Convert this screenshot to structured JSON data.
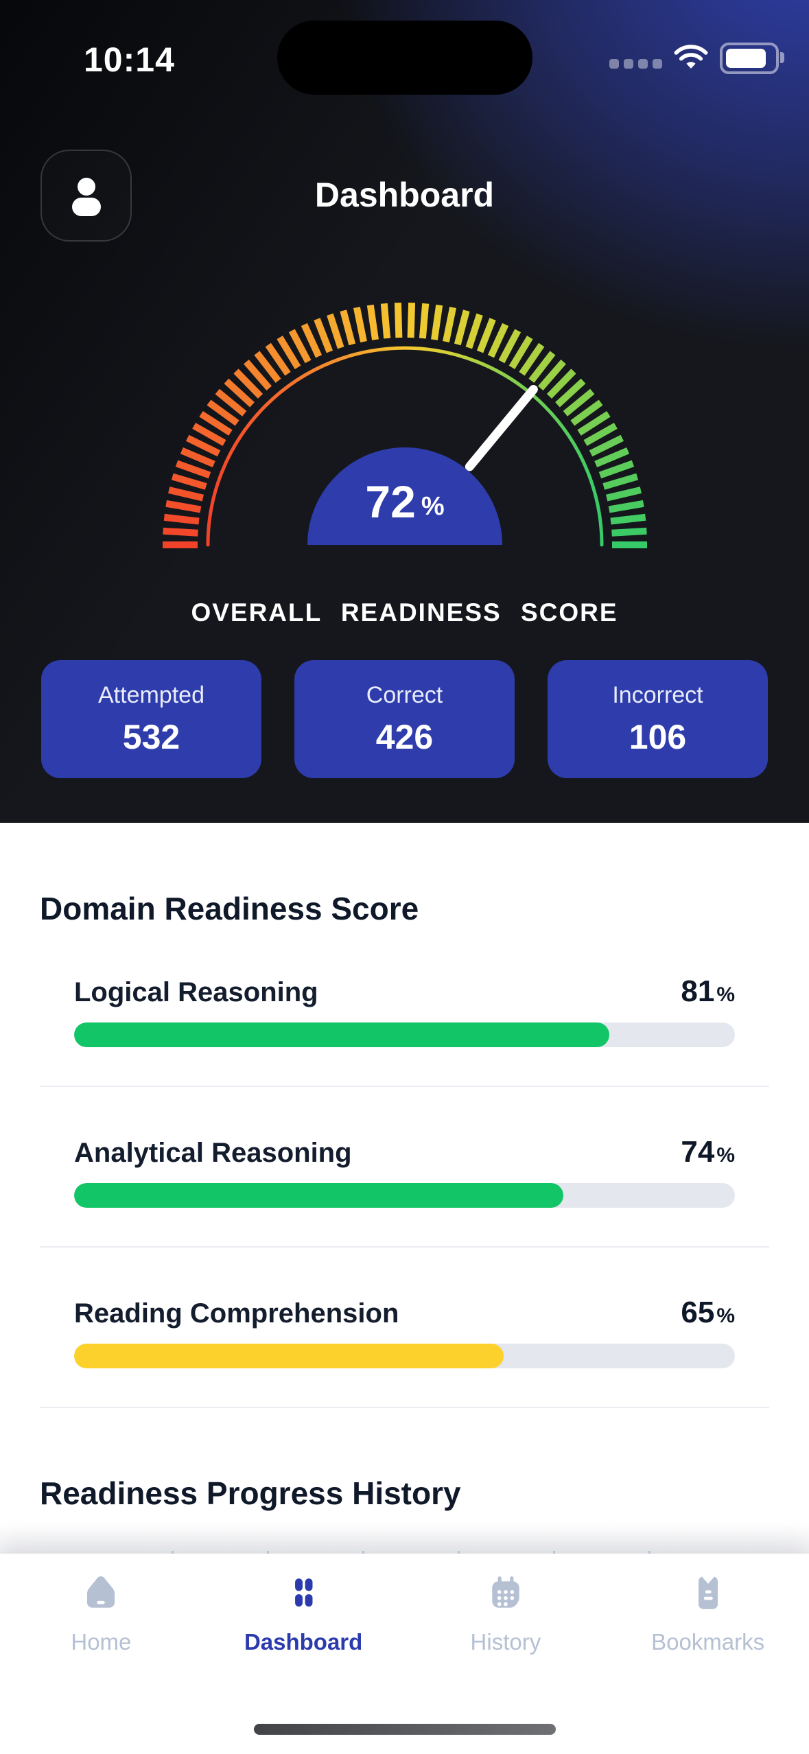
{
  "status_bar": {
    "time": "10:14",
    "signal_icon": "signal-dots-icon",
    "wifi_icon": "wifi-icon",
    "battery_icon": "battery-icon"
  },
  "header": {
    "title": "Dashboard",
    "avatar_icon": "person-icon"
  },
  "gauge": {
    "value": "72",
    "unit": "%",
    "caption": "OVERALL READINESS SCORE",
    "min": 0,
    "max": 100,
    "tick_count": 56,
    "color_stops": [
      {
        "t": 0.0,
        "color": "#f2432a"
      },
      {
        "t": 0.18,
        "color": "#f46a2d"
      },
      {
        "t": 0.35,
        "color": "#f59a2f"
      },
      {
        "t": 0.5,
        "color": "#f6c72f"
      },
      {
        "t": 0.62,
        "color": "#cfd239"
      },
      {
        "t": 0.75,
        "color": "#8ed04a"
      },
      {
        "t": 1.0,
        "color": "#36ca68"
      }
    ],
    "needle_color": "#ffffff",
    "center_color": "#2e3cac",
    "value_color": "#ffffff"
  },
  "stats": [
    {
      "label": "Attempted",
      "value": "532"
    },
    {
      "label": "Correct",
      "value": "426"
    },
    {
      "label": "Incorrect",
      "value": "106"
    }
  ],
  "domain_section": {
    "title": "Domain Readiness Score",
    "unit": "%",
    "rows": [
      {
        "label": "Logical Reasoning",
        "percent": 81,
        "color": "#12c566"
      },
      {
        "label": "Analytical Reasoning",
        "percent": 74,
        "color": "#12c566"
      },
      {
        "label": "Reading Comprehension",
        "percent": 65,
        "color": "#fcd12b"
      }
    ]
  },
  "history_section": {
    "title": "Readiness Progress History",
    "gridline_count": 6
  },
  "tab_bar": {
    "items": [
      {
        "label": "Home",
        "icon": "home-icon",
        "active": false
      },
      {
        "label": "Dashboard",
        "icon": "dashboard-grid-icon",
        "active": true
      },
      {
        "label": "History",
        "icon": "calendar-icon",
        "active": false
      },
      {
        "label": "Bookmarks",
        "icon": "bookmark-icon",
        "active": false
      }
    ]
  },
  "colors": {
    "accent_blue": "#2e3cac",
    "nav_active": "#2b3bad",
    "nav_inactive": "#b5c0d3",
    "bar_track": "#e4e8ee",
    "divider": "#e9edf2",
    "text_dark": "#10192a",
    "progress_green": "#12c566",
    "progress_yellow": "#fcd12b"
  }
}
